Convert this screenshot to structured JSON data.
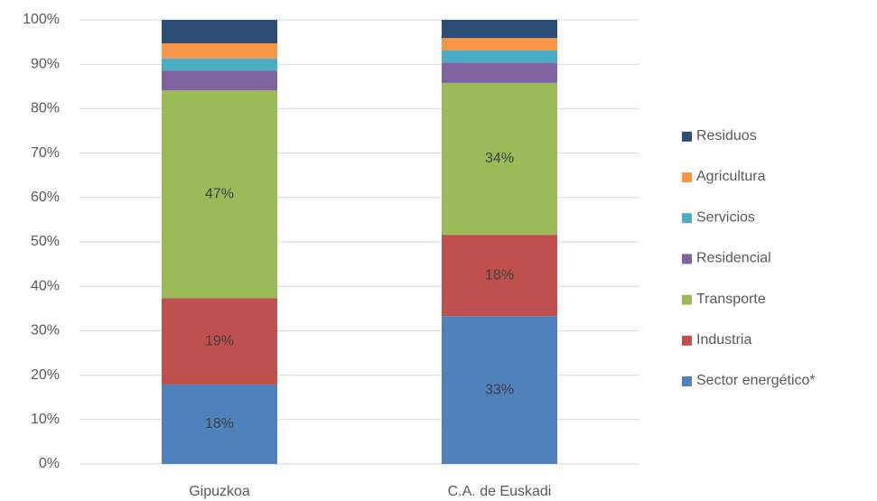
{
  "chart_data": {
    "type": "stacked_bar",
    "categories": [
      "Gipuzkoa",
      "C.A. de Euskadi"
    ],
    "series": [
      {
        "name": "Sector energético*",
        "color": "#4f81bd",
        "values": [
          17.9,
          33.3
        ],
        "value_labels": [
          "18%",
          "33%"
        ]
      },
      {
        "name": "Industria",
        "color": "#c0504d",
        "values": [
          19.4,
          18.3
        ],
        "value_labels": [
          "19%",
          "18%"
        ]
      },
      {
        "name": "Transporte",
        "color": "#9bbb59",
        "values": [
          46.8,
          34.2
        ],
        "value_labels": [
          "47%",
          "34%"
        ]
      },
      {
        "name": "Residencial",
        "color": "#8064a2",
        "values": [
          4.5,
          4.6
        ]
      },
      {
        "name": "Servicios",
        "color": "#4bacc6",
        "values": [
          2.7,
          2.7
        ]
      },
      {
        "name": "Agricultura",
        "color": "#f79646",
        "values": [
          3.4,
          2.8
        ]
      },
      {
        "name": "Residuos",
        "color": "#2c4d75",
        "values": [
          5.3,
          4.1
        ]
      }
    ],
    "ylim": [
      0,
      100
    ],
    "yticks": [
      {
        "value": 0,
        "label": "0%"
      },
      {
        "value": 10,
        "label": "10%"
      },
      {
        "value": 20,
        "label": "20%"
      },
      {
        "value": 30,
        "label": "30%"
      },
      {
        "value": 40,
        "label": "40%"
      },
      {
        "value": 50,
        "label": "50%"
      },
      {
        "value": 60,
        "label": "60%"
      },
      {
        "value": 70,
        "label": "70%"
      },
      {
        "value": 80,
        "label": "80%"
      },
      {
        "value": 90,
        "label": "90%"
      },
      {
        "value": 100,
        "label": "100%"
      }
    ],
    "grid": true,
    "legend": "right"
  }
}
